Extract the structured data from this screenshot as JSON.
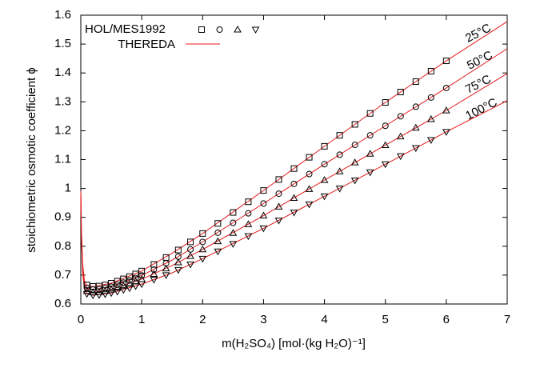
{
  "chart_data": {
    "type": "scatter-line",
    "xlabel": "m(H₂SO₄) [mol·(kg H₂O)⁻¹]",
    "ylabel": "stoichiometric osmotic coefficient ϕ",
    "xlim": [
      0,
      7
    ],
    "ylim": [
      0.6,
      1.6
    ],
    "xticks": [
      0,
      1,
      2,
      3,
      4,
      5,
      6,
      7
    ],
    "yticks": [
      0.6,
      0.7,
      0.8,
      0.9,
      1,
      1.1,
      1.2,
      1.3,
      1.4,
      1.5,
      1.6
    ],
    "marker_series": {
      "name": "HOL/MES1992",
      "color": "#000000",
      "groups": [
        {
          "label": "25°C",
          "marker": "square",
          "x": [
            0.1,
            0.2,
            0.3,
            0.4,
            0.5,
            0.6,
            0.7,
            0.8,
            0.9,
            1.0,
            1.2,
            1.4,
            1.6,
            1.8,
            2.0,
            2.25,
            2.5,
            2.75,
            3.0,
            3.25,
            3.5,
            3.75,
            4.0,
            4.25,
            4.5,
            4.75,
            5.0,
            5.25,
            5.5,
            5.75,
            6.0
          ],
          "y": [
            0.666,
            0.661,
            0.662,
            0.666,
            0.672,
            0.679,
            0.687,
            0.695,
            0.704,
            0.714,
            0.737,
            0.761,
            0.787,
            0.815,
            0.844,
            0.879,
            0.917,
            0.954,
            0.993,
            1.031,
            1.069,
            1.108,
            1.146,
            1.184,
            1.222,
            1.26,
            1.298,
            1.334,
            1.37,
            1.406,
            1.442
          ]
        },
        {
          "label": "50°C",
          "marker": "circle",
          "x": [
            0.1,
            0.2,
            0.3,
            0.4,
            0.5,
            0.6,
            0.7,
            0.8,
            0.9,
            1.0,
            1.2,
            1.4,
            1.6,
            1.8,
            2.0,
            2.25,
            2.5,
            2.75,
            3.0,
            3.25,
            3.5,
            3.75,
            4.0,
            4.25,
            4.5,
            4.75,
            5.0,
            5.25,
            5.5,
            5.75,
            6.0
          ],
          "y": [
            0.655,
            0.65,
            0.651,
            0.655,
            0.66,
            0.667,
            0.674,
            0.682,
            0.69,
            0.699,
            0.719,
            0.741,
            0.764,
            0.789,
            0.815,
            0.847,
            0.881,
            0.914,
            0.948,
            0.982,
            1.016,
            1.05,
            1.084,
            1.117,
            1.151,
            1.184,
            1.217,
            1.25,
            1.283,
            1.315,
            1.348
          ]
        },
        {
          "label": "75°C",
          "marker": "triangle-up",
          "x": [
            0.1,
            0.2,
            0.3,
            0.4,
            0.5,
            0.6,
            0.7,
            0.8,
            0.9,
            1.0,
            1.2,
            1.4,
            1.6,
            1.8,
            2.0,
            2.25,
            2.5,
            2.75,
            3.0,
            3.25,
            3.5,
            3.75,
            4.0,
            4.25,
            4.5,
            4.75,
            5.0,
            5.25,
            5.5,
            5.75,
            6.0
          ],
          "y": [
            0.645,
            0.64,
            0.641,
            0.645,
            0.65,
            0.656,
            0.663,
            0.67,
            0.678,
            0.686,
            0.704,
            0.723,
            0.744,
            0.766,
            0.789,
            0.817,
            0.846,
            0.876,
            0.906,
            0.937,
            0.967,
            0.998,
            1.029,
            1.059,
            1.09,
            1.12,
            1.15,
            1.18,
            1.21,
            1.24,
            1.27
          ]
        },
        {
          "label": "100°C",
          "marker": "triangle-down",
          "x": [
            0.1,
            0.2,
            0.3,
            0.4,
            0.5,
            0.6,
            0.7,
            0.8,
            0.9,
            1.0,
            1.2,
            1.4,
            1.6,
            1.8,
            2.0,
            2.25,
            2.5,
            2.75,
            3.0,
            3.25,
            3.5,
            3.75,
            4.0,
            4.25,
            4.5,
            4.75,
            5.0,
            5.25,
            5.5,
            5.75,
            6.0
          ],
          "y": [
            0.635,
            0.63,
            0.631,
            0.634,
            0.638,
            0.643,
            0.649,
            0.655,
            0.662,
            0.669,
            0.684,
            0.7,
            0.718,
            0.737,
            0.757,
            0.782,
            0.808,
            0.835,
            0.862,
            0.889,
            0.917,
            0.945,
            0.973,
            1.0,
            1.028,
            1.056,
            1.084,
            1.112,
            1.14,
            1.168,
            1.196
          ]
        }
      ]
    },
    "line_series": {
      "name": "THEREDA",
      "color": "#e41a1a",
      "x": [
        0,
        0.01,
        0.03,
        0.06,
        0.1,
        0.2,
        0.5,
        1,
        1.5,
        2,
        3,
        4,
        5,
        6,
        7
      ],
      "groups": [
        [
          0.99,
          0.86,
          0.74,
          0.68,
          0.665,
          0.66,
          0.672,
          0.714,
          0.776,
          0.844,
          0.993,
          1.146,
          1.298,
          1.442,
          1.578
        ],
        [
          0.99,
          0.85,
          0.73,
          0.67,
          0.655,
          0.65,
          0.66,
          0.699,
          0.752,
          0.815,
          0.948,
          1.084,
          1.217,
          1.348,
          1.484
        ],
        [
          0.99,
          0.84,
          0.72,
          0.66,
          0.645,
          0.64,
          0.65,
          0.686,
          0.733,
          0.789,
          0.906,
          1.029,
          1.15,
          1.27,
          1.398
        ],
        [
          0.99,
          0.83,
          0.71,
          0.65,
          0.635,
          0.63,
          0.638,
          0.669,
          0.708,
          0.757,
          0.862,
          0.973,
          1.084,
          1.196,
          1.304
        ]
      ]
    }
  }
}
